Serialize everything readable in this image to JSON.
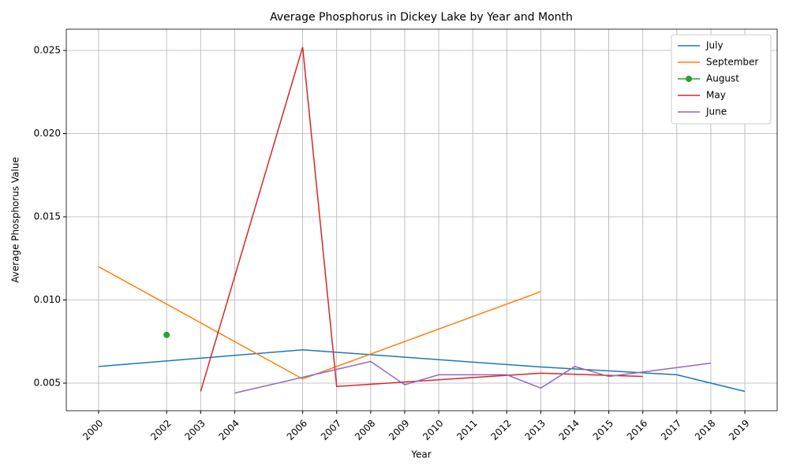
{
  "chart_data": {
    "type": "line",
    "title": "Average Phosphorus in Dickey Lake by Year and Month",
    "x_label": "Year",
    "y_label": "Average Phosphorus Value",
    "xlim": [
      1999.05,
      2019.95
    ],
    "ylim": [
      0.00334,
      0.02628
    ],
    "xticks": [
      2000,
      2002,
      2003,
      2004,
      2006,
      2007,
      2008,
      2009,
      2010,
      2011,
      2012,
      2013,
      2014,
      2015,
      2016,
      2017,
      2018,
      2019
    ],
    "yticks": [
      0.005,
      {
        "value": 0.01,
        "label": "0.010"
      },
      0.015,
      {
        "value": 0.02,
        "label": "0.020"
      },
      0.025
    ],
    "grid": true,
    "legend": "upper-right",
    "series": [
      {
        "name": "July",
        "color": "#1f77b4",
        "x": [
          2000,
          2006,
          2013,
          2017,
          2019
        ],
        "values": [
          0.006,
          0.007,
          0.00597,
          0.0055,
          0.0045
        ]
      },
      {
        "name": "September",
        "color": "#ff7f0e",
        "x": [
          2000,
          2006,
          2013
        ],
        "values": [
          0.012,
          0.00525,
          0.0105
        ]
      },
      {
        "name": "August",
        "color": "#2ca02c",
        "marker": true,
        "x": [
          2002
        ],
        "values": [
          0.0079
        ]
      },
      {
        "name": "May",
        "color": "#d62728",
        "x": [
          2003,
          2006,
          2007,
          2013,
          2016
        ],
        "values": [
          0.0045,
          0.0252,
          0.0048,
          0.0056,
          0.0054
        ]
      },
      {
        "name": "June",
        "color": "#9467bd",
        "x": [
          2004,
          2008,
          2009,
          2010,
          2012,
          2013,
          2014,
          2015,
          2018
        ],
        "values": [
          0.0044,
          0.0063,
          0.0049,
          0.0055,
          0.0055,
          0.0047,
          0.006,
          0.0054,
          0.0062
        ]
      }
    ]
  }
}
